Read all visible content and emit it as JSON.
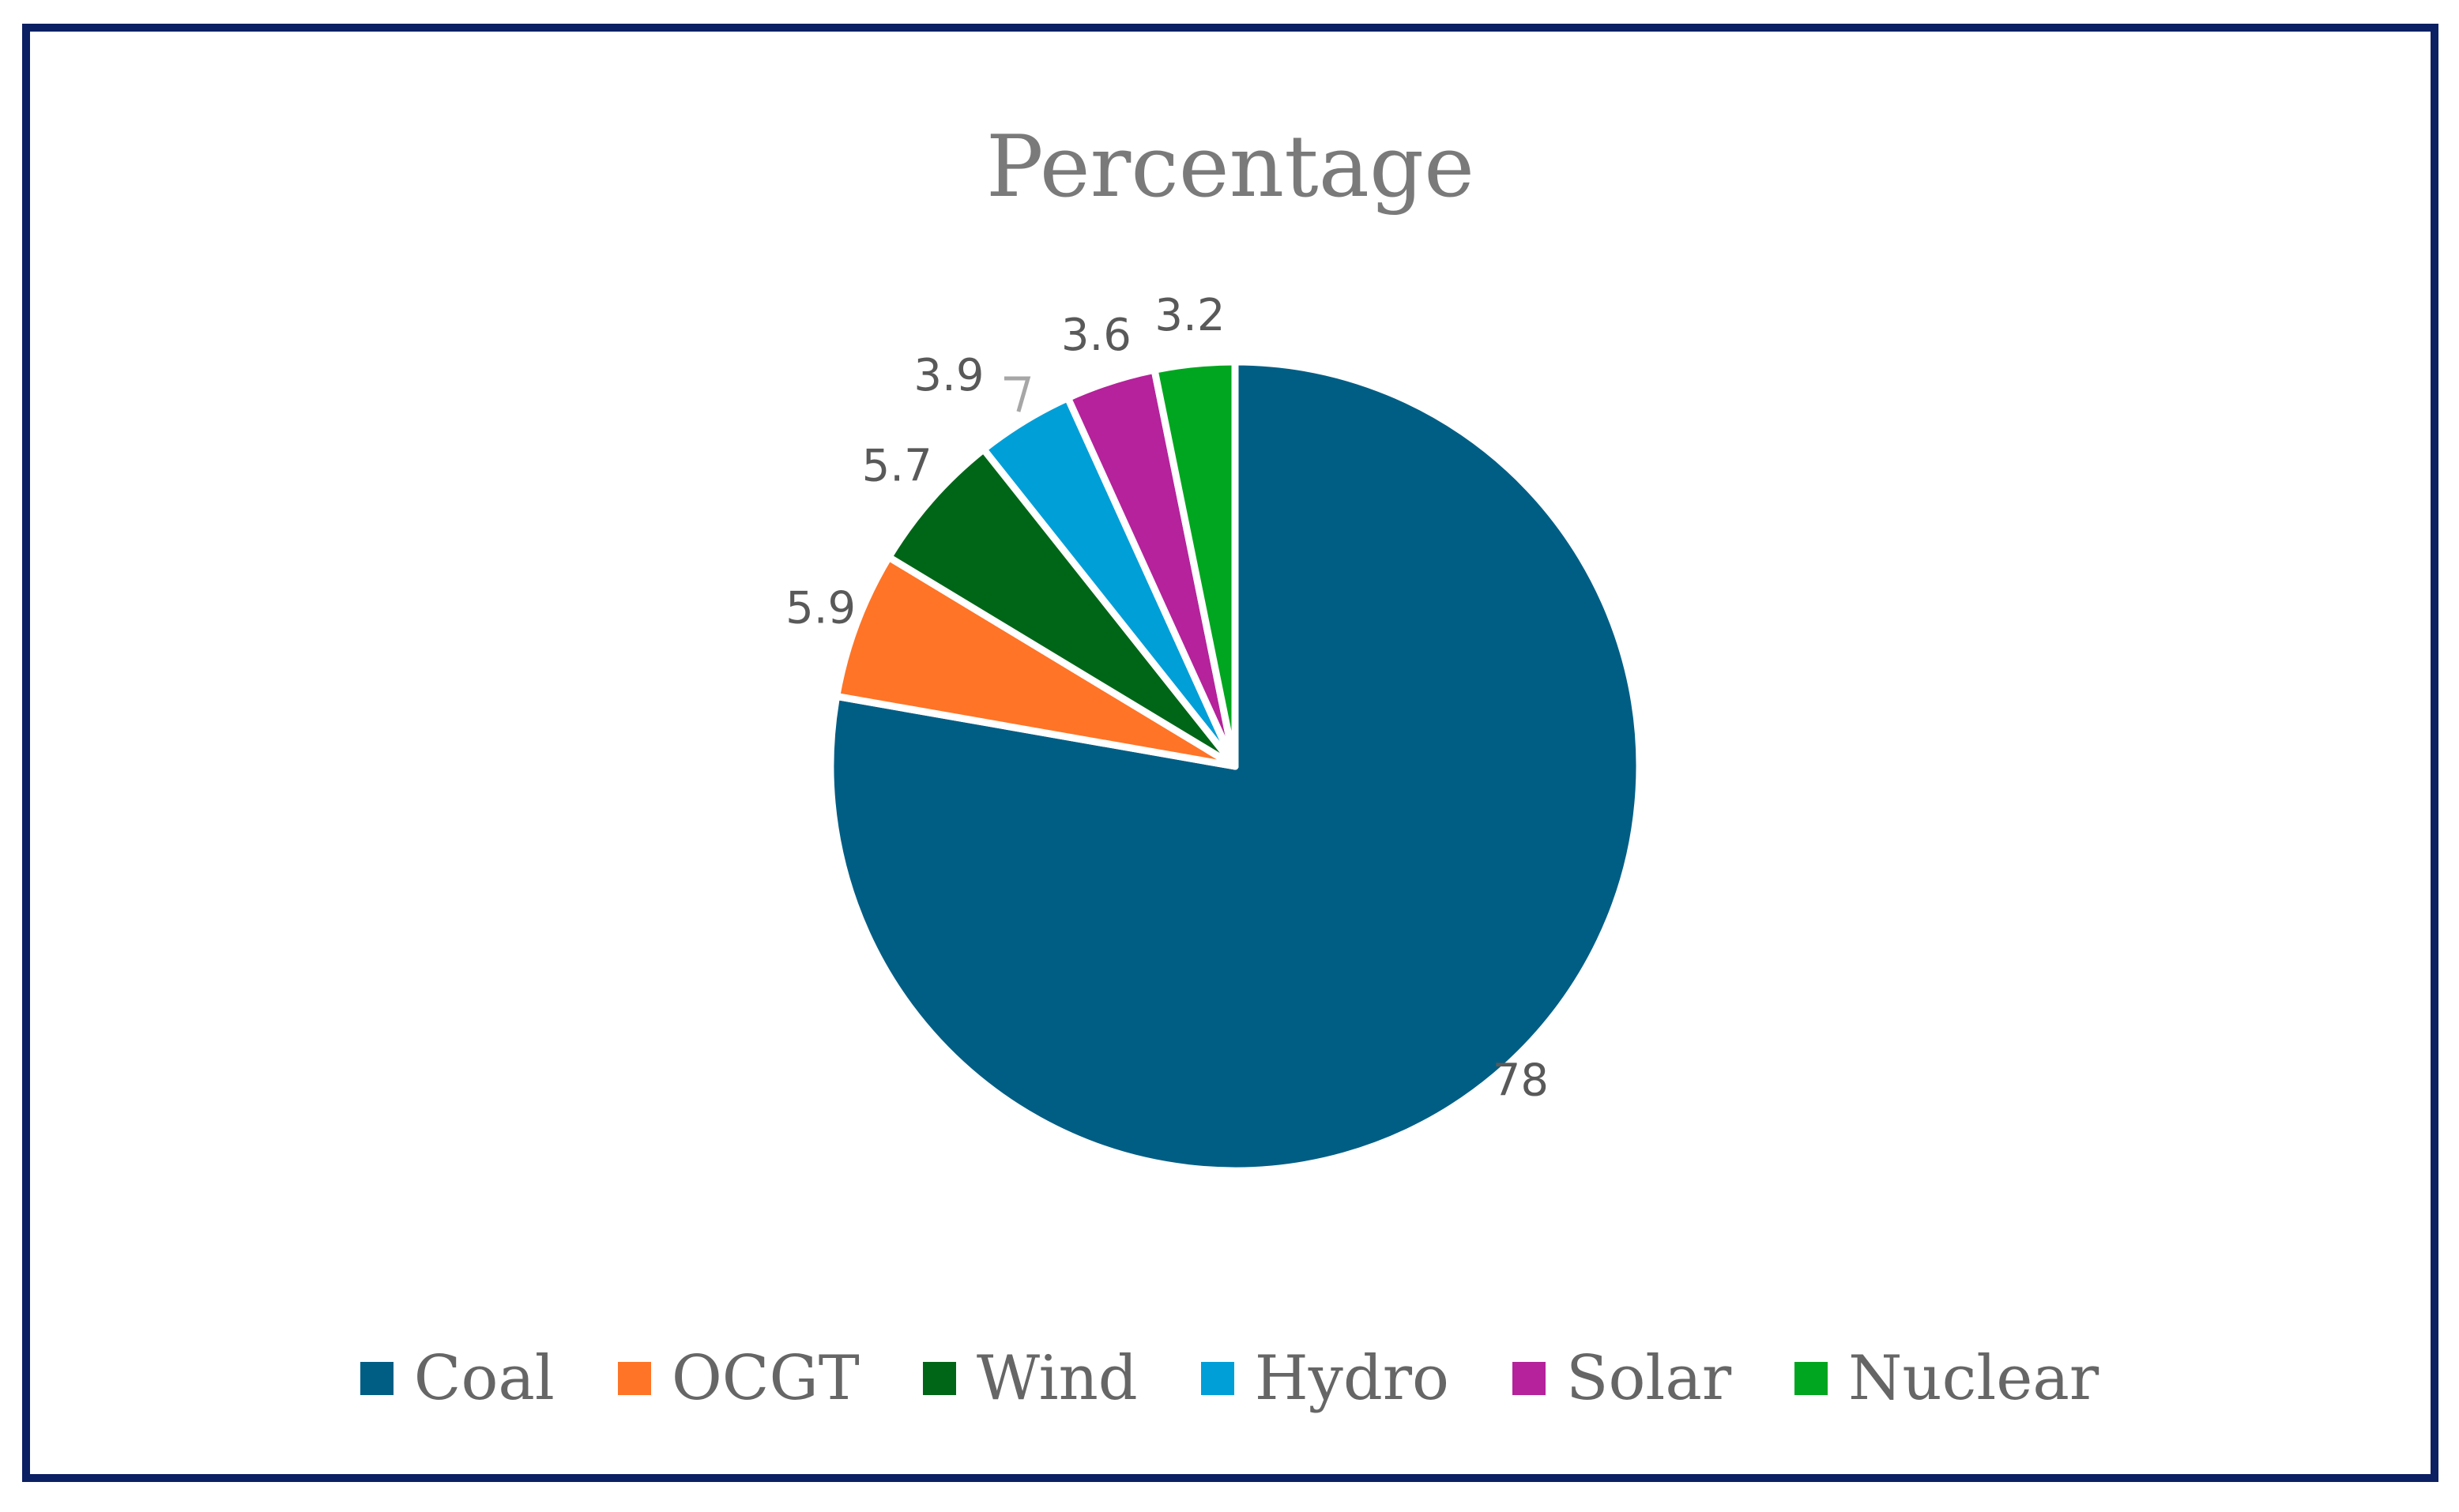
{
  "chart_data": {
    "type": "pie",
    "title": "Percentage",
    "categories": [
      "Coal",
      "OCGT",
      "Wind",
      "Hydro",
      "Solar",
      "Nuclear"
    ],
    "values": [
      78,
      5.9,
      5.7,
      3.9,
      3.6,
      3.2
    ],
    "labels": [
      "78",
      "5.9",
      "5.7",
      "3.9",
      "3.6",
      "3.2"
    ],
    "colors": [
      "#005e85",
      "#ff7426",
      "#006617",
      "#009fd8",
      "#b5229b",
      "#00a61f"
    ],
    "legend_position": "bottom",
    "start_angle": "12 o'clock",
    "direction": "clockwise"
  }
}
